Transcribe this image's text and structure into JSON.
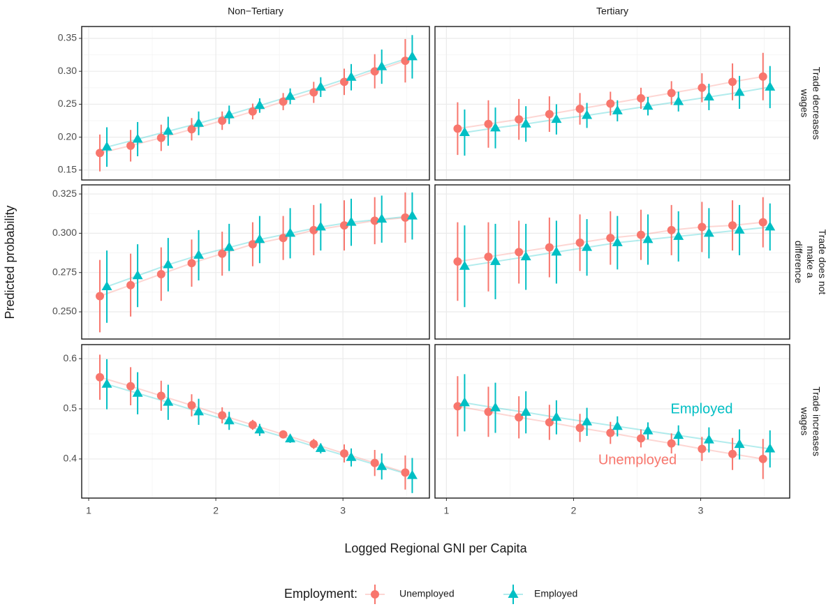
{
  "facets": {
    "columns": [
      "Non−Tertiary",
      "Tertiary"
    ],
    "rows": [
      "Trade decreases wages",
      "Trade does not make a difference",
      "Trade increases wages"
    ]
  },
  "xlabel": "Logged Regional GNI per Capita",
  "ylabel": "Predicted probability",
  "legend": {
    "title": "Employment:"
  },
  "chart_data": [
    {
      "type": "pointrange",
      "x": [
        1.088,
        1.33,
        1.57,
        1.81,
        2.05,
        2.29,
        2.53,
        2.77,
        3.01,
        3.25,
        3.49
      ],
      "ylim": [
        0.135,
        0.368
      ],
      "yticks": [
        {
          "value": 0.15,
          "label": "0.15"
        },
        {
          "value": 0.2,
          "label": "0.20"
        },
        {
          "value": 0.25,
          "label": "0.25"
        },
        {
          "value": 0.3,
          "label": "0.30"
        },
        {
          "value": 0.35,
          "label": "0.35"
        }
      ],
      "series": [
        {
          "name": "Unemployed",
          "color": "#F8766D",
          "values": [
            0.176,
            0.187,
            0.199,
            0.212,
            0.225,
            0.239,
            0.254,
            0.268,
            0.284,
            0.3,
            0.316
          ],
          "errors": [
            0.028,
            0.024,
            0.02,
            0.017,
            0.014,
            0.012,
            0.013,
            0.016,
            0.02,
            0.026,
            0.033
          ]
        },
        {
          "name": "Employed",
          "color": "#00BFC4",
          "values": [
            0.185,
            0.197,
            0.209,
            0.221,
            0.234,
            0.248,
            0.262,
            0.276,
            0.291,
            0.307,
            0.322
          ],
          "errors": [
            0.03,
            0.026,
            0.022,
            0.018,
            0.014,
            0.011,
            0.012,
            0.015,
            0.02,
            0.026,
            0.033
          ]
        }
      ]
    },
    {
      "type": "pointrange",
      "x": [
        1.088,
        1.33,
        1.57,
        1.81,
        2.05,
        2.29,
        2.53,
        2.77,
        3.01,
        3.25,
        3.49
      ],
      "series": [
        {
          "name": "Unemployed",
          "color": "#F8766D",
          "values": [
            0.213,
            0.22,
            0.227,
            0.235,
            0.243,
            0.251,
            0.259,
            0.267,
            0.275,
            0.284,
            0.292
          ],
          "errors": [
            0.04,
            0.036,
            0.031,
            0.027,
            0.024,
            0.018,
            0.016,
            0.018,
            0.022,
            0.028,
            0.036
          ]
        },
        {
          "name": "Employed",
          "color": "#00BFC4",
          "values": [
            0.207,
            0.214,
            0.22,
            0.227,
            0.233,
            0.24,
            0.247,
            0.254,
            0.261,
            0.268,
            0.276
          ],
          "errors": [
            0.035,
            0.031,
            0.027,
            0.023,
            0.019,
            0.016,
            0.014,
            0.015,
            0.02,
            0.025,
            0.032
          ]
        }
      ]
    },
    {
      "type": "pointrange",
      "x": [
        1.088,
        1.33,
        1.57,
        1.81,
        2.05,
        2.29,
        2.53,
        2.77,
        3.01,
        3.25,
        3.49
      ],
      "ylim": [
        0.2327,
        0.3308
      ],
      "yticks": [
        {
          "value": 0.25,
          "label": "0.250"
        },
        0.275,
        {
          "value": 0.3,
          "label": "0.300"
        },
        0.325
      ],
      "series": [
        {
          "name": "Unemployed",
          "color": "#F8766D",
          "values": [
            0.26,
            0.267,
            0.274,
            0.281,
            0.287,
            0.293,
            0.297,
            0.302,
            0.305,
            0.308,
            0.31
          ],
          "errors": [
            0.023,
            0.02,
            0.017,
            0.015,
            0.014,
            0.014,
            0.014,
            0.016,
            0.016,
            0.015,
            0.016
          ]
        },
        {
          "name": "Employed",
          "color": "#00BFC4",
          "values": [
            0.266,
            0.273,
            0.28,
            0.286,
            0.291,
            0.296,
            0.3,
            0.304,
            0.307,
            0.309,
            0.311
          ],
          "errors": [
            0.023,
            0.02,
            0.017,
            0.016,
            0.015,
            0.015,
            0.016,
            0.015,
            0.015,
            0.015,
            0.015
          ]
        }
      ]
    },
    {
      "type": "pointrange",
      "x": [
        1.088,
        1.33,
        1.57,
        1.81,
        2.05,
        2.29,
        2.53,
        2.77,
        3.01,
        3.25,
        3.49
      ],
      "series": [
        {
          "name": "Unemployed",
          "color": "#F8766D",
          "values": [
            0.282,
            0.285,
            0.288,
            0.291,
            0.294,
            0.297,
            0.299,
            0.302,
            0.304,
            0.305,
            0.307
          ],
          "errors": [
            0.025,
            0.022,
            0.02,
            0.019,
            0.018,
            0.017,
            0.016,
            0.016,
            0.016,
            0.016,
            0.016
          ]
        },
        {
          "name": "Employed",
          "color": "#00BFC4",
          "values": [
            0.279,
            0.282,
            0.285,
            0.288,
            0.291,
            0.294,
            0.296,
            0.298,
            0.3,
            0.302,
            0.304
          ],
          "errors": [
            0.026,
            0.024,
            0.021,
            0.02,
            0.018,
            0.017,
            0.016,
            0.016,
            0.016,
            0.016,
            0.015
          ]
        }
      ]
    },
    {
      "type": "pointrange",
      "x": [
        1.088,
        1.33,
        1.57,
        1.81,
        2.05,
        2.29,
        2.53,
        2.77,
        3.01,
        3.25,
        3.49
      ],
      "xlim": [
        0.945,
        3.68
      ],
      "xticks": [
        1,
        2,
        3
      ],
      "ylim": [
        0.322,
        0.628
      ],
      "yticks": [
        0.4,
        0.5,
        0.6
      ],
      "series": [
        {
          "name": "Unemployed",
          "color": "#F8766D",
          "values": [
            0.563,
            0.545,
            0.526,
            0.507,
            0.487,
            0.468,
            0.449,
            0.43,
            0.411,
            0.392,
            0.373
          ],
          "errors": [
            0.045,
            0.038,
            0.03,
            0.022,
            0.016,
            0.01,
            0.007,
            0.01,
            0.018,
            0.026,
            0.034
          ]
        },
        {
          "name": "Employed",
          "color": "#00BFC4",
          "values": [
            0.549,
            0.531,
            0.513,
            0.494,
            0.476,
            0.458,
            0.44,
            0.421,
            0.403,
            0.385,
            0.367
          ],
          "errors": [
            0.05,
            0.042,
            0.035,
            0.026,
            0.018,
            0.012,
            0.008,
            0.01,
            0.018,
            0.026,
            0.035
          ]
        }
      ]
    },
    {
      "type": "pointrange",
      "x": [
        1.088,
        1.33,
        1.57,
        1.81,
        2.05,
        2.29,
        2.53,
        2.77,
        3.01,
        3.25,
        3.49
      ],
      "xlim": [
        0.91,
        3.7
      ],
      "xticks": [
        1,
        2,
        3
      ],
      "annotations": [
        {
          "text": "Employed",
          "color": "#00BFC4"
        },
        {
          "text": "Unemployed",
          "color": "#F8766D"
        }
      ],
      "series": [
        {
          "name": "Unemployed",
          "color": "#F8766D",
          "values": [
            0.505,
            0.494,
            0.483,
            0.473,
            0.462,
            0.452,
            0.441,
            0.431,
            0.42,
            0.41,
            0.4
          ],
          "errors": [
            0.06,
            0.05,
            0.042,
            0.035,
            0.028,
            0.022,
            0.018,
            0.02,
            0.024,
            0.032,
            0.04
          ]
        },
        {
          "name": "Employed",
          "color": "#00BFC4",
          "values": [
            0.512,
            0.502,
            0.493,
            0.483,
            0.474,
            0.465,
            0.456,
            0.447,
            0.438,
            0.429,
            0.42
          ],
          "errors": [
            0.057,
            0.05,
            0.042,
            0.034,
            0.028,
            0.02,
            0.017,
            0.02,
            0.025,
            0.03,
            0.037
          ]
        }
      ]
    }
  ]
}
